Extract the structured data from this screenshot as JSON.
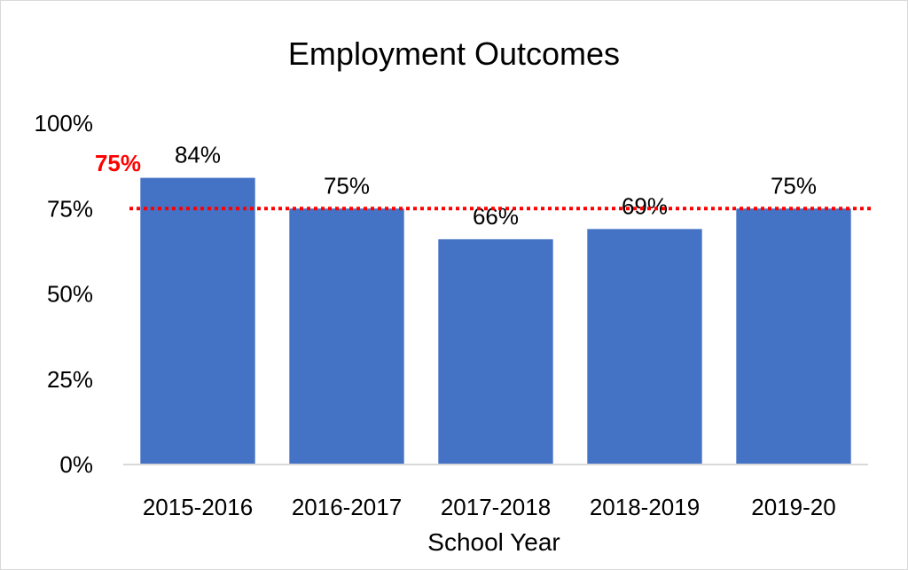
{
  "chart_data": {
    "type": "bar",
    "title": "Employment Outcomes",
    "xlabel": "School Year",
    "ylabel": "",
    "categories": [
      "2015-2016",
      "2016-2017",
      "2017-2018",
      "2018-2019",
      "2019-20"
    ],
    "values": [
      84,
      75,
      66,
      69,
      75
    ],
    "data_labels": [
      "84%",
      "75%",
      "66%",
      "69%",
      "75%"
    ],
    "ylim": [
      0,
      100
    ],
    "y_ticks": [
      0,
      25,
      50,
      75,
      100
    ],
    "y_tick_labels": [
      "0%",
      "25%",
      "50%",
      "75%",
      "100%"
    ],
    "grid": false,
    "legend": "none",
    "target_line": {
      "value": 75,
      "label": "75%",
      "style": "dotted"
    },
    "colors": {
      "bar": "#4472C4",
      "target": "#FF0000",
      "axis": "#d9d9d9"
    }
  }
}
